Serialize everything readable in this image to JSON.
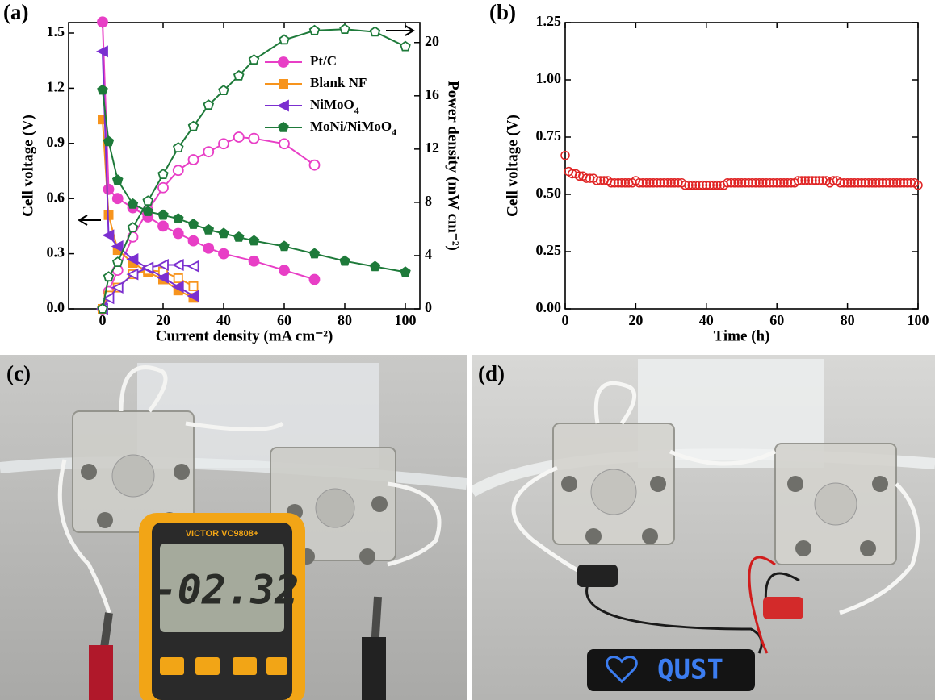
{
  "chart_data": [
    {
      "type": "line",
      "panel_label": "(a)",
      "xlabel": "Current density (mA cm⁻²)",
      "ylabel": "Cell voltage (V)",
      "y2label": "Power density (mW cm⁻²)",
      "xlim": [
        -11.2,
        104.8
      ],
      "xticks": [
        0,
        20,
        40,
        60,
        80,
        100
      ],
      "ylim": [
        0,
        1.557
      ],
      "yticks": [
        {
          "value": 0,
          "label": "0.0"
        },
        0.3,
        0.6,
        0.9,
        1.2,
        1.5
      ],
      "y2lim": [
        0,
        21.5
      ],
      "y2ticks": [
        0,
        4,
        8,
        12,
        16,
        20
      ],
      "series": [
        {
          "name": "Pt/C",
          "color": "#e83fc6",
          "marker": "circle",
          "x": [
            0,
            2,
            5,
            10,
            15,
            20,
            25,
            30,
            35,
            40,
            50,
            60,
            70
          ],
          "values": [
            1.56,
            0.65,
            0.6,
            0.55,
            0.5,
            0.45,
            0.41,
            0.37,
            0.33,
            0.3,
            0.26,
            0.21,
            0.16
          ],
          "y2_x": [
            0,
            2,
            5,
            10,
            15,
            20,
            25,
            30,
            35,
            40,
            45,
            50,
            60,
            70
          ],
          "y2_values": [
            0,
            1.3,
            2.9,
            5.4,
            7.4,
            9.1,
            10.4,
            11.2,
            11.8,
            12.4,
            12.9,
            12.8,
            12.4,
            10.8
          ]
        },
        {
          "name": "Blank NF",
          "color": "#f7941d",
          "marker": "square",
          "x": [
            0,
            2,
            5,
            10,
            15,
            20,
            25,
            30
          ],
          "values": [
            1.03,
            0.51,
            0.32,
            0.25,
            0.2,
            0.16,
            0.1,
            0.06
          ],
          "y2_x": [
            0,
            2,
            5,
            10,
            15,
            20,
            25,
            30
          ],
          "y2_values": [
            0,
            1.0,
            1.6,
            2.6,
            2.9,
            2.8,
            2.3,
            1.7
          ]
        },
        {
          "name": "NiMoO4",
          "color": "#7b2fd0",
          "marker": "triangle-left",
          "x": [
            0,
            2,
            5,
            10,
            15,
            20,
            25,
            30
          ],
          "values": [
            1.4,
            0.4,
            0.34,
            0.27,
            0.22,
            0.17,
            0.12,
            0.07
          ],
          "y2_x": [
            0,
            2,
            5,
            10,
            15,
            20,
            25,
            30
          ],
          "y2_values": [
            0,
            0.8,
            1.6,
            2.6,
            3.1,
            3.3,
            3.3,
            3.2
          ]
        },
        {
          "name": "MoNi/NiMoO4",
          "color": "#1e7a3a",
          "marker": "pentagon",
          "x": [
            0,
            2,
            5,
            10,
            15,
            20,
            25,
            30,
            35,
            40,
            45,
            50,
            60,
            70,
            80,
            90,
            100
          ],
          "values": [
            1.19,
            0.91,
            0.7,
            0.57,
            0.53,
            0.51,
            0.49,
            0.46,
            0.43,
            0.41,
            0.39,
            0.37,
            0.34,
            0.3,
            0.26,
            0.23,
            0.2
          ],
          "y2_x": [
            0,
            2,
            5,
            10,
            15,
            20,
            25,
            30,
            35,
            40,
            45,
            50,
            60,
            70,
            80,
            90,
            100
          ],
          "y2_values": [
            0,
            2.4,
            3.5,
            6.1,
            8.1,
            10.1,
            12.1,
            13.7,
            15.3,
            16.4,
            17.5,
            18.7,
            20.2,
            20.9,
            21.0,
            20.8,
            19.7
          ]
        }
      ]
    },
    {
      "type": "scatter",
      "panel_label": "(b)",
      "xlabel": "Time (h)",
      "ylabel": "Cell voltage (V)",
      "xlim": [
        0,
        100
      ],
      "xticks": [
        0,
        20,
        40,
        60,
        80,
        100
      ],
      "ylim": [
        0,
        1.25
      ],
      "yticks": [
        {
          "value": 0,
          "label": "0.00"
        },
        {
          "value": 0.25,
          "label": "0.25"
        },
        {
          "value": 0.5,
          "label": "0.50"
        },
        {
          "value": 0.75,
          "label": "0.75"
        },
        {
          "value": 1,
          "label": "1.00"
        },
        {
          "value": 1.25,
          "label": "1.25"
        }
      ],
      "color": "#e02424",
      "x": [
        0,
        1,
        2,
        3,
        4,
        5,
        6,
        7,
        8,
        9,
        10,
        11,
        12,
        13,
        14,
        15,
        16,
        17,
        18,
        19,
        20,
        21,
        22,
        23,
        24,
        25,
        26,
        27,
        28,
        29,
        30,
        31,
        32,
        33,
        34,
        35,
        36,
        37,
        38,
        39,
        40,
        41,
        42,
        43,
        44,
        45,
        46,
        47,
        48,
        49,
        50,
        51,
        52,
        53,
        54,
        55,
        56,
        57,
        58,
        59,
        60,
        61,
        62,
        63,
        64,
        65,
        66,
        67,
        68,
        69,
        70,
        71,
        72,
        73,
        74,
        75,
        76,
        77,
        78,
        79,
        80,
        81,
        82,
        83,
        84,
        85,
        86,
        87,
        88,
        89,
        90,
        91,
        92,
        93,
        94,
        95,
        96,
        97,
        98,
        99,
        100
      ],
      "values": [
        0.67,
        0.6,
        0.59,
        0.59,
        0.58,
        0.58,
        0.57,
        0.57,
        0.57,
        0.56,
        0.56,
        0.56,
        0.56,
        0.55,
        0.55,
        0.55,
        0.55,
        0.55,
        0.55,
        0.55,
        0.56,
        0.55,
        0.55,
        0.55,
        0.55,
        0.55,
        0.55,
        0.55,
        0.55,
        0.55,
        0.55,
        0.55,
        0.55,
        0.55,
        0.54,
        0.54,
        0.54,
        0.54,
        0.54,
        0.54,
        0.54,
        0.54,
        0.54,
        0.54,
        0.54,
        0.54,
        0.55,
        0.55,
        0.55,
        0.55,
        0.55,
        0.55,
        0.55,
        0.55,
        0.55,
        0.55,
        0.55,
        0.55,
        0.55,
        0.55,
        0.55,
        0.55,
        0.55,
        0.55,
        0.55,
        0.55,
        0.56,
        0.56,
        0.56,
        0.56,
        0.56,
        0.56,
        0.56,
        0.56,
        0.56,
        0.55,
        0.56,
        0.56,
        0.55,
        0.55,
        0.55,
        0.55,
        0.55,
        0.55,
        0.55,
        0.55,
        0.55,
        0.55,
        0.55,
        0.55,
        0.55,
        0.55,
        0.55,
        0.55,
        0.55,
        0.55,
        0.55,
        0.55,
        0.55,
        0.55,
        0.54
      ]
    }
  ],
  "photos": [
    {
      "label": "(c)",
      "meter_brand": "VICTOR VC9808+",
      "reading": "-02.32"
    },
    {
      "label": "(d)",
      "display": "QUST"
    }
  ]
}
